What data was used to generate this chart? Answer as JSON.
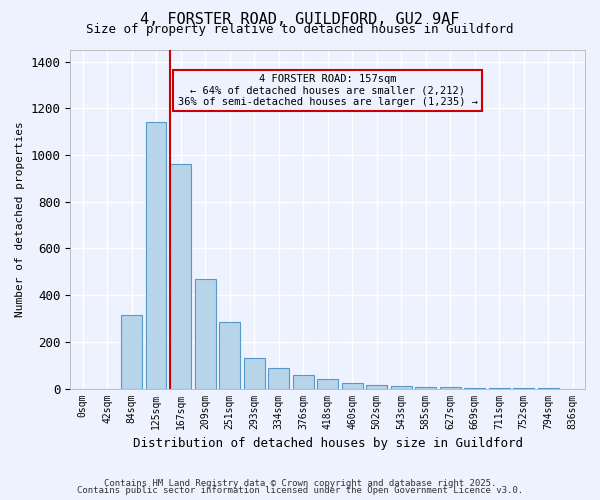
{
  "title1": "4, FORSTER ROAD, GUILDFORD, GU2 9AF",
  "title2": "Size of property relative to detached houses in Guildford",
  "xlabel": "Distribution of detached houses by size in Guildford",
  "ylabel": "Number of detached properties",
  "bar_labels": [
    "0sqm",
    "42sqm",
    "84sqm",
    "125sqm",
    "167sqm",
    "209sqm",
    "251sqm",
    "293sqm",
    "334sqm",
    "376sqm",
    "418sqm",
    "460sqm",
    "502sqm",
    "543sqm",
    "585sqm",
    "627sqm",
    "669sqm",
    "711sqm",
    "752sqm",
    "794sqm",
    "836sqm"
  ],
  "bar_values": [
    0,
    0,
    315,
    1140,
    960,
    470,
    285,
    130,
    90,
    60,
    40,
    25,
    15,
    10,
    8,
    5,
    3,
    2,
    1,
    1,
    0
  ],
  "bar_color": "#b8d4e8",
  "bar_edge_color": "#5599cc",
  "vline_x": 3.57,
  "vline_color": "#cc0000",
  "annotation_text": "4 FORSTER ROAD: 157sqm\n← 64% of detached houses are smaller (2,212)\n36% of semi-detached houses are larger (1,235) →",
  "annotation_box_color": "#cc0000",
  "ylim": [
    0,
    1450
  ],
  "yticks": [
    0,
    200,
    400,
    600,
    800,
    1000,
    1200,
    1400
  ],
  "bg_color": "#eef2ff",
  "grid_color": "#ffffff",
  "footer1": "Contains HM Land Registry data © Crown copyright and database right 2025.",
  "footer2": "Contains public sector information licensed under the Open Government Licence v3.0."
}
